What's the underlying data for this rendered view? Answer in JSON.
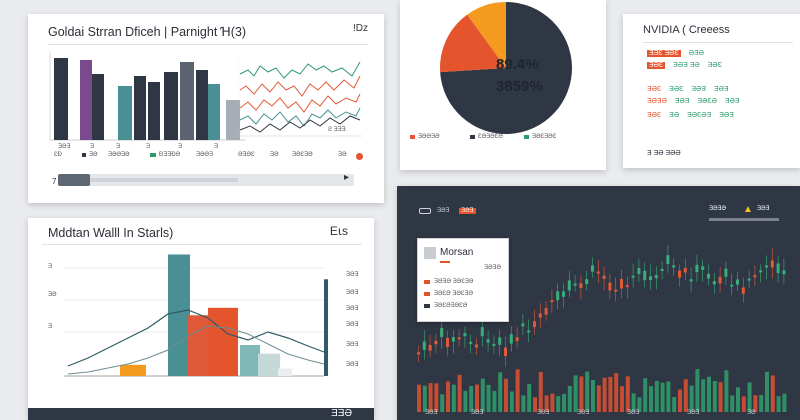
{
  "colors": {
    "navy": "#2f3744",
    "teal": "#4a8f93",
    "orange": "#e4552e",
    "amber": "#f39a1f",
    "green": "#2d9b6c",
    "red": "#e05a3a",
    "gray": "#9aa1aa"
  },
  "panel_top_left": {
    "title": "Goldai Strran Dficeh | Parnight Ɦ(3)",
    "corner_icon": "ǃǲ",
    "badge": "ƎƤƏ",
    "axis_value": "Ƨ ƎƎƎ",
    "legend": [
      "ƐƉ",
      "ƎƏ",
      "ƎƏƏƎƏ",
      "ƉƎƎƉƏ",
      "ƎƏƏƎ",
      "ƏƎƏƐ",
      "ƎƏ",
      "ƎƏƐƎƏ",
      "ƎƏ"
    ],
    "scroll_label": "7",
    "icons": [
      "warning-icon",
      "record-icon"
    ]
  },
  "panel_pie": {
    "value_1": "89.4%",
    "value_2": "3859%",
    "legend": [
      "ƎƏƏƎƏ",
      "ƐƏƎƏƐƏ",
      "ƎƏƐƎƏƐ"
    ],
    "chart_data": {
      "type": "pie",
      "slices": [
        {
          "label": "",
          "value": 74,
          "color": "#2f3744"
        },
        {
          "label": "",
          "value": 16,
          "color": "#e4552e"
        },
        {
          "label": "",
          "value": 10,
          "color": "#f39a1f"
        }
      ]
    }
  },
  "panel_table": {
    "title": "NVIDIA ( Creeess",
    "footer": "Ǝ ƎƏ ƎƏƏ",
    "rows": [
      [
        "ƎƎƐ ƎƏƐ",
        "",
        "ƏƎƏ",
        "ƎƏ",
        "ƎƏƎ"
      ],
      [
        "ƎƏƐ",
        "ƎƏƎ ƎƏ",
        "ƎƏƐ",
        "ƎƏƎƏ",
        "ƎƏƎ"
      ],
      [
        "ƎƏƐ",
        "ƎƏ",
        "ƎƏƐ",
        "ƎƏƎ",
        "ƎƏƎ"
      ],
      [
        "ƎƏƎƏ",
        "ƎƏƎ",
        "ƎƏƐƏ",
        "ƎƏƎ",
        "ƎƏƎƏ"
      ],
      [
        "ƎƏƐ",
        "ƎƏ",
        "ƎƏƐƏƎ",
        "ƎƏƎ",
        "ƎƏƎƏ"
      ]
    ]
  },
  "panel_bottom_left": {
    "title": "Mddtan Walll In Starls)",
    "corner_icon": "Eꙇs",
    "value": "ƎƎƏ",
    "chart_data": {
      "type": "bar",
      "categories": [
        "a",
        "b",
        "c",
        "d",
        "e",
        "f",
        "g",
        "h"
      ],
      "values": [
        9,
        98,
        49,
        55,
        25,
        18,
        6,
        78
      ],
      "ylim": [
        0,
        100
      ]
    }
  },
  "panel_dark": {
    "header_labels": [
      "ƎƏƎ",
      "ƎƏƎ"
    ],
    "header_right": [
      "ƎƏƎƏ",
      "ƎƏƎ"
    ],
    "popup": {
      "title": "Morsan",
      "rows": [
        "ƎƏƎƏ ƎƏƐƎƏ",
        "ƎƏƐƏ ƎƏƐƎƏ",
        "ƎƏƐƏƎƏƐƏ"
      ],
      "right": "ƎƏƎƏ"
    },
    "x_labels": [
      "ƎƏƎ",
      "ƎƏƎ",
      "ƎƏƎ",
      "ƎƏƎ",
      "ƎƏƎ",
      "ƎƏƎ",
      "ƎƏ"
    ]
  }
}
